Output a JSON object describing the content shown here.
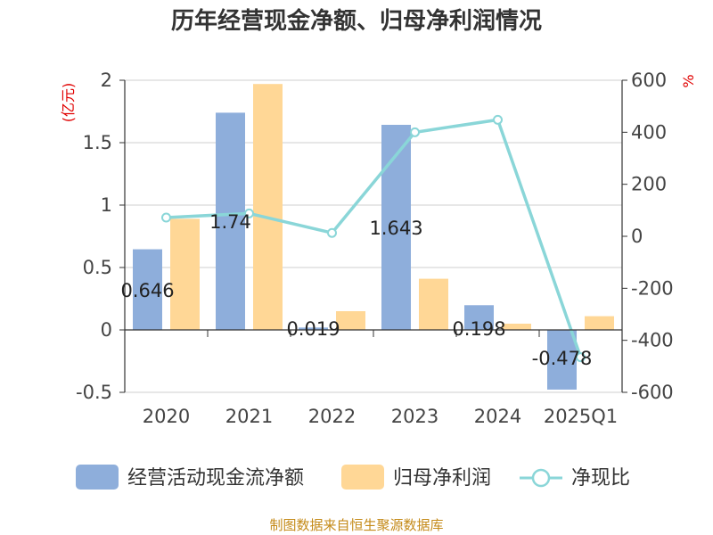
{
  "chart_data": {
    "type": "bar+line",
    "title": "历年经营现金净额、归母净利润情况",
    "categories": [
      "2020",
      "2021",
      "2022",
      "2023",
      "2024",
      "2025Q1"
    ],
    "series": [
      {
        "name": "经营活动现金流净额",
        "kind": "bar",
        "axis": "left",
        "color": "#8eaedb",
        "values": [
          0.646,
          1.74,
          0.019,
          1.643,
          0.198,
          -0.478
        ],
        "labels": [
          "0.646",
          "1.74",
          "0.019",
          "1.643",
          "0.198",
          "-0.478"
        ]
      },
      {
        "name": "归母净利润",
        "kind": "bar",
        "axis": "left",
        "color": "#ffd796",
        "values": [
          0.89,
          1.97,
          0.15,
          0.41,
          0.05,
          0.11
        ]
      },
      {
        "name": "净现比",
        "kind": "line",
        "axis": "right",
        "color": "#8ad6d8",
        "values": [
          72,
          88,
          13,
          400,
          448,
          -465
        ]
      }
    ],
    "left_axis": {
      "unit": "(亿元)",
      "min": -0.5,
      "max": 2,
      "ticks": [
        -0.5,
        0,
        0.5,
        1,
        1.5,
        2
      ],
      "tick_labels": [
        "-0.5",
        "0",
        "0.5",
        "1",
        "1.5",
        "2"
      ]
    },
    "right_axis": {
      "unit": "%",
      "min": -600,
      "max": 600,
      "ticks": [
        -600,
        -400,
        -200,
        0,
        200,
        400,
        600
      ],
      "tick_labels": [
        "-600",
        "-400",
        "-200",
        "0",
        "200",
        "400",
        "600"
      ]
    },
    "legend": [
      "经营活动现金流净额",
      "归母净利润",
      "净现比"
    ],
    "legend_position": "bottom",
    "source": "制图数据来自恒生聚源数据库"
  }
}
